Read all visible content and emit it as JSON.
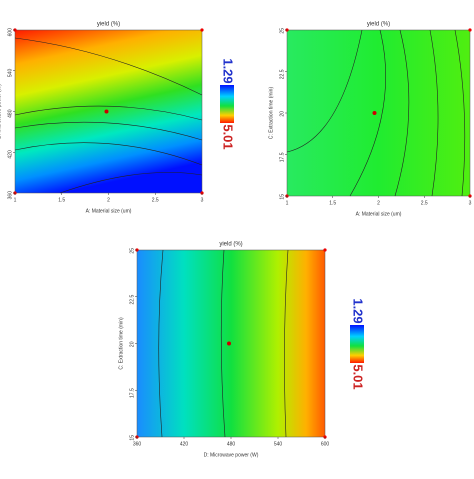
{
  "chart_data": [
    {
      "type": "contour",
      "title": "yield (%)",
      "x_label": "A: Material size (um)",
      "y_label": "D: Microwave power (W)",
      "xlim": [
        1,
        3
      ],
      "xticks": [
        1,
        1.5,
        2,
        2.5,
        3
      ],
      "ylim": [
        360,
        600
      ],
      "yticks": [
        360,
        420,
        480,
        540,
        600
      ],
      "colorbar_labels": [
        1.29,
        5.01
      ]
    },
    {
      "type": "contour",
      "title": "yield (%)",
      "x_label": "A: Material size (um)",
      "y_label": "C: Extraction time (min)",
      "xlim": [
        1,
        3
      ],
      "xticks": [
        1,
        1.5,
        2,
        2.5,
        3
      ],
      "ylim": [
        15,
        25
      ],
      "yticks": [
        15,
        17.5,
        20,
        22.5,
        25
      ]
    },
    {
      "type": "contour",
      "title": "yield (%)",
      "x_label": "D: Microwave power (W)",
      "y_label": "C: Extraction time (min)",
      "xlim": [
        360,
        600
      ],
      "xticks": [
        360,
        420,
        480,
        540,
        600
      ],
      "ylim": [
        15,
        25
      ],
      "yticks": [
        15,
        17.5,
        20,
        22.5,
        25
      ],
      "colorbar_labels": [
        1.29,
        5.01
      ]
    }
  ]
}
